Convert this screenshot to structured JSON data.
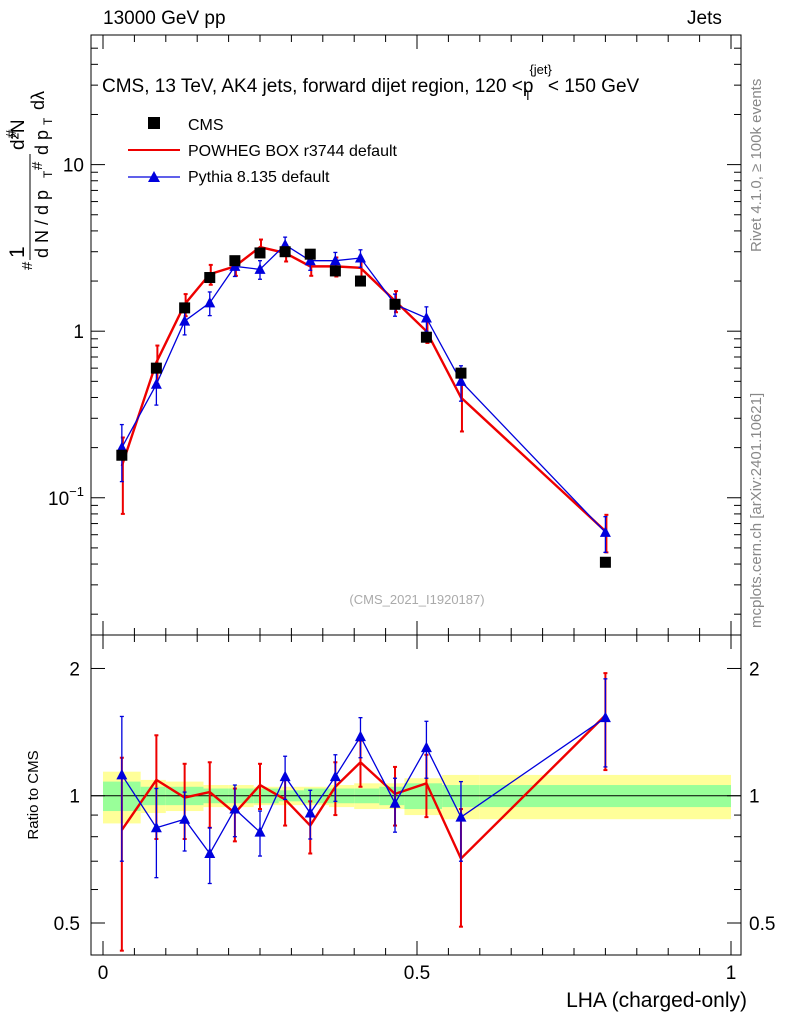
{
  "header": {
    "left": "13000 GeV pp",
    "right": "Jets"
  },
  "side_labels": {
    "rivet": "Rivet 4.1.0, ≥ 100k events",
    "mcplots": "mcplots.cern.ch [arXiv:2401.10621]"
  },
  "chart_data": {
    "type": "scatter",
    "title": "CMS, 13 TeV, AK4 jets, forward dijet region, 120 <p_T^{jet}< 150 GeV",
    "watermark": "(CMS_2021_I1920187)",
    "xlabel": "LHA (charged-only)",
    "ylabel": "1/dN/dp_T dN/dp_T dlambda",
    "ratio_ylabel": "Ratio to CMS",
    "xlim": [
      0,
      1
    ],
    "ylim_log": [
      0.015,
      60
    ],
    "ratio_ylim": [
      0.42,
      2.4
    ],
    "x_ticks": [
      "0",
      "0.5",
      "1"
    ],
    "y_ticks": [
      "10^-1",
      "1",
      "10"
    ],
    "ratio_ticks": [
      "0.5",
      "1",
      "2"
    ],
    "legend": [
      "CMS",
      "POWHEG BOX r3744 default",
      "Pythia 8.135 default"
    ],
    "legend_position": "top-left",
    "bins": [
      {
        "lo": 0.0,
        "hi": 0.06
      },
      {
        "lo": 0.06,
        "hi": 0.1
      },
      {
        "lo": 0.1,
        "hi": 0.16
      },
      {
        "lo": 0.16,
        "hi": 0.2
      },
      {
        "lo": 0.2,
        "hi": 0.24
      },
      {
        "lo": 0.24,
        "hi": 0.28
      },
      {
        "lo": 0.28,
        "hi": 0.32
      },
      {
        "lo": 0.32,
        "hi": 0.36
      },
      {
        "lo": 0.36,
        "hi": 0.4
      },
      {
        "lo": 0.4,
        "hi": 0.44
      },
      {
        "lo": 0.44,
        "hi": 0.48
      },
      {
        "lo": 0.48,
        "hi": 0.54
      },
      {
        "lo": 0.54,
        "hi": 0.6
      },
      {
        "lo": 0.6,
        "hi": 1.0
      }
    ],
    "series": [
      {
        "name": "CMS",
        "color": "#000000",
        "marker": "square",
        "x": [
          0.03,
          0.085,
          0.13,
          0.17,
          0.21,
          0.25,
          0.29,
          0.33,
          0.37,
          0.41,
          0.465,
          0.515,
          0.57,
          0.8
        ],
        "y": [
          0.18,
          0.6,
          1.38,
          2.1,
          2.65,
          2.95,
          3.0,
          2.9,
          2.3,
          2.0,
          1.45,
          0.92,
          0.56,
          0.041
        ],
        "band_inner": [
          0.08,
          0.05,
          0.05,
          0.04,
          0.04,
          0.04,
          0.03,
          0.04,
          0.04,
          0.04,
          0.05,
          0.07,
          0.06,
          0.06
        ],
        "band_outer": [
          0.14,
          0.09,
          0.08,
          0.06,
          0.06,
          0.05,
          0.05,
          0.05,
          0.06,
          0.07,
          0.07,
          0.1,
          0.12,
          0.12
        ]
      },
      {
        "name": "POWHEG BOX r3744 default",
        "color": "#ee0000",
        "marker": "none",
        "x": [
          0.03,
          0.085,
          0.13,
          0.17,
          0.21,
          0.25,
          0.29,
          0.33,
          0.37,
          0.41,
          0.465,
          0.515,
          0.57,
          0.8
        ],
        "y": [
          0.155,
          0.65,
          1.45,
          2.2,
          2.45,
          3.2,
          2.95,
          2.45,
          2.45,
          2.4,
          1.52,
          1.0,
          0.4,
          0.063
        ],
        "yerr": [
          0.075,
          0.17,
          0.22,
          0.3,
          0.3,
          0.35,
          0.33,
          0.3,
          0.32,
          0.3,
          0.22,
          0.15,
          0.15,
          0.016
        ]
      },
      {
        "name": "Pythia 8.135 default",
        "color": "#0000dd",
        "marker": "triangle",
        "x": [
          0.03,
          0.085,
          0.13,
          0.17,
          0.21,
          0.25,
          0.29,
          0.33,
          0.37,
          0.41,
          0.465,
          0.515,
          0.57,
          0.8
        ],
        "y": [
          0.2,
          0.48,
          1.15,
          1.48,
          2.45,
          2.35,
          3.3,
          2.65,
          2.65,
          2.75,
          1.45,
          1.2,
          0.5,
          0.062
        ],
        "yerr": [
          0.075,
          0.12,
          0.2,
          0.24,
          0.32,
          0.3,
          0.37,
          0.33,
          0.32,
          0.33,
          0.22,
          0.2,
          0.12,
          0.015
        ]
      }
    ],
    "ratios": [
      {
        "name": "POWHEG BOX r3744 default",
        "y": [
          0.83,
          1.09,
          0.99,
          1.02,
          0.91,
          1.06,
          0.98,
          0.85,
          1.05,
          1.2,
          1.01,
          1.07,
          0.71,
          1.55
        ],
        "yerr": [
          0.4,
          0.3,
          0.2,
          0.18,
          0.13,
          0.13,
          0.13,
          0.12,
          0.15,
          0.15,
          0.16,
          0.18,
          0.22,
          0.4
        ]
      },
      {
        "name": "Pythia 8.135 default",
        "y": [
          1.12,
          0.84,
          0.88,
          0.73,
          0.93,
          0.82,
          1.11,
          0.91,
          1.11,
          1.38,
          0.96,
          1.3,
          0.89,
          1.53
        ],
        "yerr": [
          0.42,
          0.2,
          0.14,
          0.11,
          0.13,
          0.1,
          0.13,
          0.12,
          0.14,
          0.15,
          0.14,
          0.2,
          0.19,
          0.36
        ]
      }
    ]
  }
}
